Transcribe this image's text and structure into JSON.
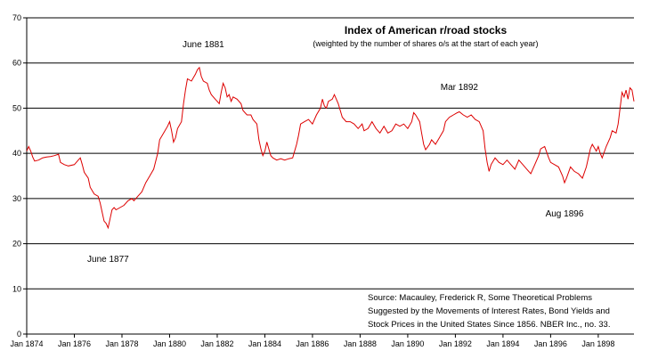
{
  "chart_data": {
    "type": "line",
    "title": "Index of American r/road stocks",
    "subtitle": "(weighted by the number of shares o/s at the start of each year)",
    "xlabel": "",
    "ylabel": "",
    "xlim": [
      "1874-01",
      "1899-07"
    ],
    "ylim": [
      0,
      70
    ],
    "yticks": [
      0,
      10,
      20,
      30,
      40,
      50,
      60,
      70
    ],
    "ytick_labels": [
      "0",
      "10",
      "20",
      "30",
      "40",
      "50",
      "60",
      "70"
    ],
    "xticks": [
      "1874-01",
      "1876-01",
      "1878-01",
      "1880-01",
      "1882-01",
      "1884-01",
      "1886-01",
      "1888-01",
      "1890-01",
      "1892-01",
      "1894-01",
      "1896-01",
      "1898-01"
    ],
    "xtick_labels": [
      "Jan 1874",
      "Jan 1876",
      "Jan 1878",
      "Jan 1880",
      "Jan 1882",
      "Jan 1884",
      "Jan 1886",
      "Jan 1888",
      "Jan 1890",
      "Jan 1892",
      "Jan 1894",
      "Jan 1896",
      "Jan 1898"
    ],
    "grid": "horizontal",
    "legend": "none",
    "series": [
      {
        "color": "#dd0000",
        "points": [
          [
            "1874-01",
            40.5
          ],
          [
            "1874-02",
            41.5
          ],
          [
            "1874-03",
            40.5
          ],
          [
            "1874-04",
            39.2
          ],
          [
            "1874-05",
            38.3
          ],
          [
            "1874-07",
            38.5
          ],
          [
            "1874-09",
            39.0
          ],
          [
            "1874-11",
            39.2
          ],
          [
            "1875-01",
            39.3
          ],
          [
            "1875-03",
            39.5
          ],
          [
            "1875-05",
            39.8
          ],
          [
            "1875-06",
            38.0
          ],
          [
            "1875-08",
            37.5
          ],
          [
            "1875-10",
            37.2
          ],
          [
            "1876-01",
            37.5
          ],
          [
            "1876-03",
            38.5
          ],
          [
            "1876-04",
            39.0
          ],
          [
            "1876-05",
            37.5
          ],
          [
            "1876-06",
            35.8
          ],
          [
            "1876-08",
            34.5
          ],
          [
            "1876-09",
            32.5
          ],
          [
            "1876-11",
            31.0
          ],
          [
            "1877-01",
            30.5
          ],
          [
            "1877-02",
            29.0
          ],
          [
            "1877-03",
            27.0
          ],
          [
            "1877-04",
            25.0
          ],
          [
            "1877-05",
            24.5
          ],
          [
            "1877-06",
            23.5
          ],
          [
            "1877-07",
            25.5
          ],
          [
            "1877-08",
            27.5
          ],
          [
            "1877-09",
            28.0
          ],
          [
            "1877-10",
            27.5
          ],
          [
            "1877-12",
            28.0
          ],
          [
            "1878-02",
            28.5
          ],
          [
            "1878-04",
            29.5
          ],
          [
            "1878-06",
            30.0
          ],
          [
            "1878-07",
            29.5
          ],
          [
            "1878-09",
            30.5
          ],
          [
            "1878-11",
            31.5
          ],
          [
            "1879-01",
            33.5
          ],
          [
            "1879-03",
            35.0
          ],
          [
            "1879-05",
            36.5
          ],
          [
            "1879-07",
            40.0
          ],
          [
            "1879-08",
            43.0
          ],
          [
            "1879-10",
            44.5
          ],
          [
            "1879-12",
            46.0
          ],
          [
            "1880-01",
            47.0
          ],
          [
            "1880-02",
            45.0
          ],
          [
            "1880-03",
            42.5
          ],
          [
            "1880-04",
            43.5
          ],
          [
            "1880-05",
            45.5
          ],
          [
            "1880-07",
            47.0
          ],
          [
            "1880-08",
            51.0
          ],
          [
            "1880-09",
            54.0
          ],
          [
            "1880-10",
            56.5
          ],
          [
            "1880-12",
            56.0
          ],
          [
            "1881-02",
            57.5
          ],
          [
            "1881-03",
            58.5
          ],
          [
            "1881-04",
            59.0
          ],
          [
            "1881-05",
            57.0
          ],
          [
            "1881-06",
            56.0
          ],
          [
            "1881-08",
            55.5
          ],
          [
            "1881-09",
            54.0
          ],
          [
            "1881-10",
            53.0
          ],
          [
            "1881-12",
            52.0
          ],
          [
            "1882-01",
            51.5
          ],
          [
            "1882-02",
            51.0
          ],
          [
            "1882-03",
            53.5
          ],
          [
            "1882-04",
            55.5
          ],
          [
            "1882-05",
            54.5
          ],
          [
            "1882-06",
            52.5
          ],
          [
            "1882-07",
            53.0
          ],
          [
            "1882-08",
            51.5
          ],
          [
            "1882-09",
            52.5
          ],
          [
            "1882-11",
            52.0
          ],
          [
            "1883-01",
            51.0
          ],
          [
            "1883-02",
            49.5
          ],
          [
            "1883-04",
            48.5
          ],
          [
            "1883-06",
            48.5
          ],
          [
            "1883-07",
            47.5
          ],
          [
            "1883-09",
            46.5
          ],
          [
            "1883-10",
            43.0
          ],
          [
            "1883-11",
            41.0
          ],
          [
            "1883-12",
            39.5
          ],
          [
            "1884-01",
            40.5
          ],
          [
            "1884-02",
            42.5
          ],
          [
            "1884-03",
            41.0
          ],
          [
            "1884-04",
            39.5
          ],
          [
            "1884-05",
            39.0
          ],
          [
            "1884-07",
            38.5
          ],
          [
            "1884-09",
            38.8
          ],
          [
            "1884-11",
            38.5
          ],
          [
            "1885-01",
            38.8
          ],
          [
            "1885-03",
            39.0
          ],
          [
            "1885-05",
            42.0
          ],
          [
            "1885-06",
            44.0
          ],
          [
            "1885-07",
            46.5
          ],
          [
            "1885-09",
            47.0
          ],
          [
            "1885-11",
            47.5
          ],
          [
            "1886-01",
            46.5
          ],
          [
            "1886-03",
            48.5
          ],
          [
            "1886-05",
            50.0
          ],
          [
            "1886-06",
            52.0
          ],
          [
            "1886-07",
            50.5
          ],
          [
            "1886-08",
            50.0
          ],
          [
            "1886-09",
            51.5
          ],
          [
            "1886-11",
            52.0
          ],
          [
            "1886-12",
            53.0
          ],
          [
            "1887-02",
            51.0
          ],
          [
            "1887-04",
            48.0
          ],
          [
            "1887-06",
            47.0
          ],
          [
            "1887-08",
            47.0
          ],
          [
            "1887-10",
            46.5
          ],
          [
            "1887-12",
            45.5
          ],
          [
            "1888-02",
            46.5
          ],
          [
            "1888-03",
            45.0
          ],
          [
            "1888-05",
            45.5
          ],
          [
            "1888-07",
            47.0
          ],
          [
            "1888-09",
            45.5
          ],
          [
            "1888-11",
            44.5
          ],
          [
            "1889-01",
            46.0
          ],
          [
            "1889-03",
            44.5
          ],
          [
            "1889-05",
            45.0
          ],
          [
            "1889-07",
            46.5
          ],
          [
            "1889-09",
            46.0
          ],
          [
            "1889-11",
            46.5
          ],
          [
            "1890-01",
            45.5
          ],
          [
            "1890-03",
            47.0
          ],
          [
            "1890-04",
            49.0
          ],
          [
            "1890-05",
            48.5
          ],
          [
            "1890-07",
            47.0
          ],
          [
            "1890-08",
            44.5
          ],
          [
            "1890-09",
            42.0
          ],
          [
            "1890-10",
            40.8
          ],
          [
            "1890-12",
            42.0
          ],
          [
            "1891-01",
            43.0
          ],
          [
            "1891-03",
            42.0
          ],
          [
            "1891-05",
            43.5
          ],
          [
            "1891-07",
            45.0
          ],
          [
            "1891-08",
            47.0
          ],
          [
            "1891-10",
            48.0
          ],
          [
            "1891-12",
            48.5
          ],
          [
            "1892-02",
            49.0
          ],
          [
            "1892-03",
            49.2
          ],
          [
            "1892-05",
            48.5
          ],
          [
            "1892-07",
            48.0
          ],
          [
            "1892-09",
            48.5
          ],
          [
            "1892-11",
            47.5
          ],
          [
            "1893-01",
            47.0
          ],
          [
            "1893-03",
            45.0
          ],
          [
            "1893-04",
            41.0
          ],
          [
            "1893-05",
            38.0
          ],
          [
            "1893-06",
            36.0
          ],
          [
            "1893-07",
            37.5
          ],
          [
            "1893-09",
            39.0
          ],
          [
            "1893-11",
            38.0
          ],
          [
            "1894-01",
            37.5
          ],
          [
            "1894-03",
            38.5
          ],
          [
            "1894-05",
            37.5
          ],
          [
            "1894-07",
            36.5
          ],
          [
            "1894-09",
            38.5
          ],
          [
            "1894-11",
            37.5
          ],
          [
            "1895-01",
            36.5
          ],
          [
            "1895-03",
            35.5
          ],
          [
            "1895-05",
            37.5
          ],
          [
            "1895-07",
            39.5
          ],
          [
            "1895-08",
            41.0
          ],
          [
            "1895-10",
            41.5
          ],
          [
            "1895-12",
            39.0
          ],
          [
            "1896-01",
            38.0
          ],
          [
            "1896-03",
            37.5
          ],
          [
            "1896-05",
            37.0
          ],
          [
            "1896-07",
            35.0
          ],
          [
            "1896-08",
            33.5
          ],
          [
            "1896-09",
            34.5
          ],
          [
            "1896-11",
            37.0
          ],
          [
            "1897-01",
            36.0
          ],
          [
            "1897-03",
            35.5
          ],
          [
            "1897-05",
            34.5
          ],
          [
            "1897-07",
            37.0
          ],
          [
            "1897-09",
            41.0
          ],
          [
            "1897-10",
            42.0
          ],
          [
            "1897-12",
            40.5
          ],
          [
            "1898-01",
            41.5
          ],
          [
            "1898-02",
            40.0
          ],
          [
            "1898-03",
            39.0
          ],
          [
            "1898-05",
            41.5
          ],
          [
            "1898-07",
            43.5
          ],
          [
            "1898-08",
            45.0
          ],
          [
            "1898-10",
            44.5
          ],
          [
            "1898-11",
            46.5
          ],
          [
            "1898-12",
            50.0
          ],
          [
            "1899-01",
            53.5
          ],
          [
            "1899-02",
            52.5
          ],
          [
            "1899-03",
            54.0
          ],
          [
            "1899-04",
            52.0
          ],
          [
            "1899-05",
            54.5
          ],
          [
            "1899-06",
            54.0
          ],
          [
            "1899-07",
            51.5
          ]
        ]
      }
    ],
    "annotations": [
      {
        "text": "June 1881",
        "x": "1881-06",
        "y": 63.5
      },
      {
        "text": "June 1877",
        "x": "1877-06",
        "y": 16.0
      },
      {
        "text": "Mar 1892",
        "x": "1892-03",
        "y": 54.0
      },
      {
        "text": "Aug 1896",
        "x": "1896-08",
        "y": 26.0
      }
    ],
    "source_lines": [
      "Source: Macauley, Frederick R, Some Theoretical Problems",
      "Suggested by the Movements of Interest Rates, Bond Yields and",
      "Stock Prices in the United States Since 1856. NBER Inc., no. 33."
    ]
  }
}
